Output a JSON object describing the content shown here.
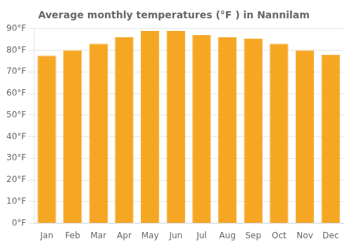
{
  "chart_data": {
    "type": "bar",
    "title": "Average monthly temperatures (°F ) in Nannilam",
    "categories": [
      "Jan",
      "Feb",
      "Mar",
      "Apr",
      "May",
      "Jun",
      "Jul",
      "Aug",
      "Sep",
      "Oct",
      "Nov",
      "Dec"
    ],
    "values": [
      77.5,
      80.0,
      83.0,
      86.0,
      89.0,
      89.0,
      87.0,
      86.0,
      85.5,
      83.0,
      80.0,
      78.0
    ],
    "color": "#F5A623",
    "ylim": [
      0,
      90
    ],
    "yticks": [
      {
        "value": 0,
        "label": "0°F"
      },
      {
        "value": 10,
        "label": "10°F"
      },
      {
        "value": 20,
        "label": "20°F"
      },
      {
        "value": 30,
        "label": "30°F"
      },
      {
        "value": 40,
        "label": "40°F"
      },
      {
        "value": 50,
        "label": "50°F"
      },
      {
        "value": 60,
        "label": "60°F"
      },
      {
        "value": 70,
        "label": "70°F"
      },
      {
        "value": 80,
        "label": "80°F"
      },
      {
        "value": 90,
        "label": "90°F"
      }
    ],
    "grid": true
  }
}
